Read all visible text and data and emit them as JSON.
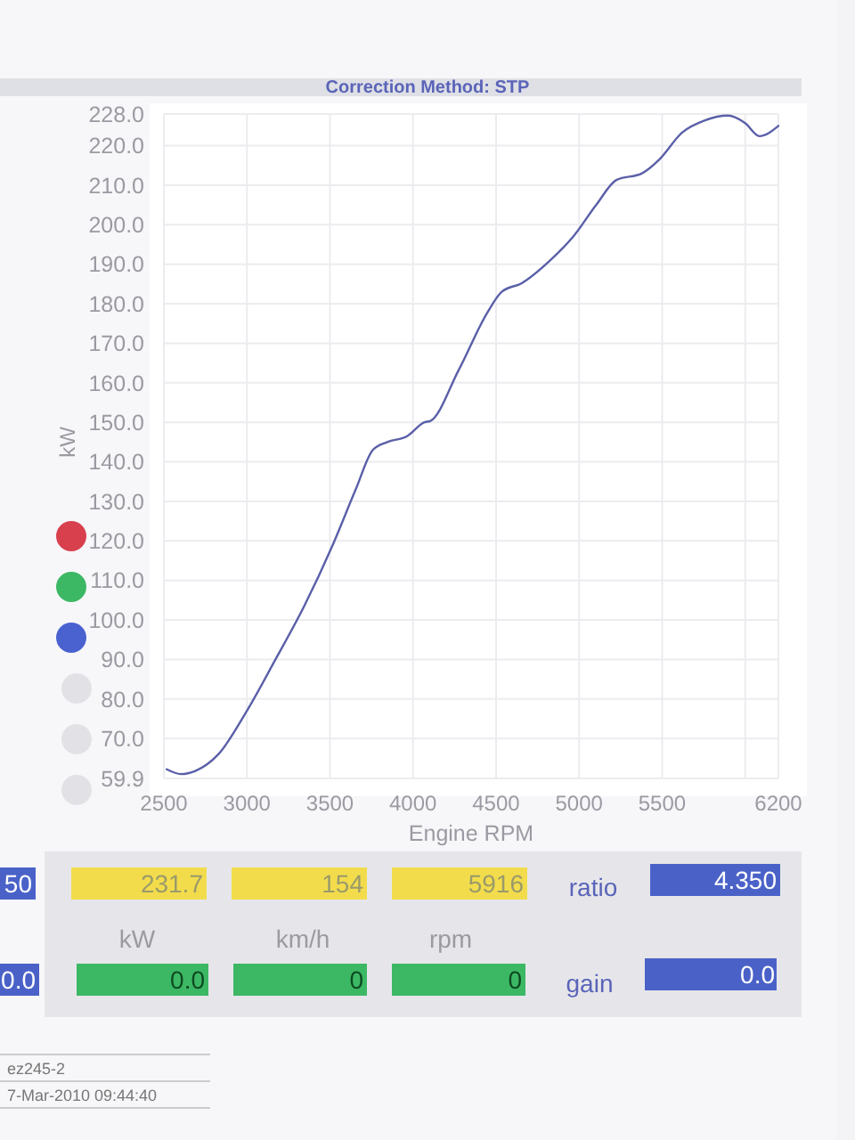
{
  "chart_data": {
    "type": "line",
    "subtitle": "Correction Method: STP",
    "xlabel": "Engine RPM",
    "ylabel": "kW",
    "xlim": [
      2500,
      6200
    ],
    "xticks": [
      2500,
      3000,
      3500,
      4000,
      4500,
      5000,
      5500,
      {
        "value": 6000,
        "label": null
      },
      6200
    ],
    "ylim": [
      59.9,
      228
    ],
    "yticks": [
      {
        "value": 59.9,
        "label": "59.9"
      },
      {
        "value": 70,
        "label": "70.0"
      },
      {
        "value": 80,
        "label": "80.0"
      },
      {
        "value": 90,
        "label": "90.0"
      },
      {
        "value": 100,
        "label": "100.0"
      },
      {
        "value": 110,
        "label": "110.0"
      },
      {
        "value": 120,
        "label": "120.0"
      },
      {
        "value": 130,
        "label": "130.0"
      },
      {
        "value": 140,
        "label": "140.0"
      },
      {
        "value": 150,
        "label": "150.0"
      },
      {
        "value": 160,
        "label": "160.0"
      },
      {
        "value": 170,
        "label": "170.0"
      },
      {
        "value": 180,
        "label": "180.0"
      },
      {
        "value": 190,
        "label": "190.0"
      },
      {
        "value": 200,
        "label": "200.0"
      },
      {
        "value": 210,
        "label": "210.0"
      },
      {
        "value": 220,
        "label": "220.0"
      },
      {
        "value": 228,
        "label": "228.0"
      }
    ],
    "grid": true,
    "marker": "none",
    "line_style": "solid",
    "series": [
      {
        "color": "#5a5fa8",
        "x": [
          2517,
          2603,
          2690,
          2828,
          3000,
          3172,
          3345,
          3517,
          3655,
          3758,
          3845,
          3965,
          4069,
          4103,
          4276,
          4448,
          4534,
          4655,
          4827,
          4965,
          5103,
          5224,
          5379,
          5483,
          5620,
          5758,
          5896,
          6000,
          6086,
          6200
        ],
        "values": [
          62.2,
          61,
          61.8,
          66,
          77,
          90,
          103.5,
          119,
          133,
          143,
          145,
          146.5,
          150,
          150.3,
          163.3,
          177.8,
          183,
          185.2,
          191,
          197,
          205,
          211.3,
          213,
          216.5,
          223.3,
          226.4,
          227.6,
          225.7,
          222.4,
          225
        ]
      }
    ],
    "annotations": [
      "50",
      "231.7",
      "154",
      "5916",
      "ratio",
      "4.350",
      "kW",
      "km/h",
      "rpm",
      "0.0",
      "0.0",
      "0",
      "0",
      "gain",
      "0.0",
      "ez245-2",
      "7-Mar-2010  09:44:40"
    ]
  }
}
